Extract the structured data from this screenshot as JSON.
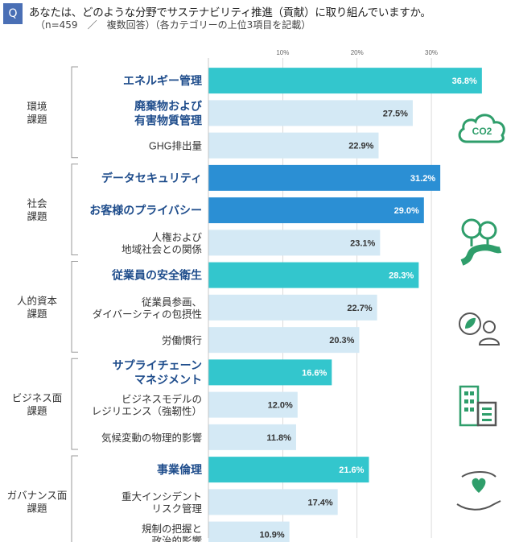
{
  "header": {
    "q_label": "Q",
    "title": "あなたは、どのような分野でサステナビリティ推進（貢献）に取り組んでいますか。",
    "subtitle": "（n=459　／　複数回答）（各カテゴリーの上位3項目を記載）"
  },
  "chart_data": {
    "type": "bar",
    "orientation": "horizontal",
    "title": "",
    "xlabel": "",
    "ylabel": "",
    "x_ticks": [
      "10%",
      "20%",
      "30%"
    ],
    "xlim": [
      0,
      38
    ],
    "groups": [
      {
        "name": "環境\n課題",
        "items": [
          {
            "label": "エネルギー管理",
            "value": 36.8,
            "value_label": "36.8%",
            "highlight": "teal"
          },
          {
            "label": "廃棄物および\n有害物質管理",
            "value": 27.5,
            "value_label": "27.5%",
            "highlight": "none_bold"
          },
          {
            "label": "GHG排出量",
            "value": 22.9,
            "value_label": "22.9%",
            "highlight": "none"
          }
        ]
      },
      {
        "name": "社会\n課題",
        "items": [
          {
            "label": "データセキュリティ",
            "value": 31.2,
            "value_label": "31.2%",
            "highlight": "blue"
          },
          {
            "label": "お客様のプライバシー",
            "value": 29.0,
            "value_label": "29.0%",
            "highlight": "blue"
          },
          {
            "label": "人権および\n地域社会との関係",
            "value": 23.1,
            "value_label": "23.1%",
            "highlight": "none"
          }
        ]
      },
      {
        "name": "人的資本\n課題",
        "items": [
          {
            "label": "従業員の安全衛生",
            "value": 28.3,
            "value_label": "28.3%",
            "highlight": "teal"
          },
          {
            "label": "従業員参画、\nダイバーシティの包摂性",
            "value": 22.7,
            "value_label": "22.7%",
            "highlight": "none"
          },
          {
            "label": "労働慣行",
            "value": 20.3,
            "value_label": "20.3%",
            "highlight": "none"
          }
        ]
      },
      {
        "name": "ビジネス面\n課題",
        "items": [
          {
            "label": "サプライチェーン\nマネジメント",
            "value": 16.6,
            "value_label": "16.6%",
            "highlight": "teal"
          },
          {
            "label": "ビジネスモデルの\nレジリエンス（強靭性）",
            "value": 12.0,
            "value_label": "12.0%",
            "highlight": "none"
          },
          {
            "label": "気候変動の物理的影響",
            "value": 11.8,
            "value_label": "11.8%",
            "highlight": "none"
          }
        ]
      },
      {
        "name": "ガバナンス面\n課題",
        "items": [
          {
            "label": "事業倫理",
            "value": 21.6,
            "value_label": "21.6%",
            "highlight": "teal"
          },
          {
            "label": "重大インシデント\nリスク管理",
            "value": 17.4,
            "value_label": "17.4%",
            "highlight": "none"
          },
          {
            "label": "規制の把握と\n政治的影響",
            "value": 10.9,
            "value_label": "10.9%",
            "highlight": "none"
          }
        ]
      }
    ]
  },
  "icons": {
    "environment": "co2-cloud-icon",
    "co2_text": "CO2",
    "social": "trees-path-icon",
    "human": "leaf-person-icon",
    "business": "building-icon",
    "governance": "hand-heart-icon"
  },
  "colors": {
    "teal": "#33c6cd",
    "blue": "#2b8fd4",
    "light": "#d4e9f5",
    "highlight_text": "#1f4d8c",
    "normal_text": "#333333",
    "icon_green": "#2f9e6b",
    "grid": "#cccccc"
  }
}
